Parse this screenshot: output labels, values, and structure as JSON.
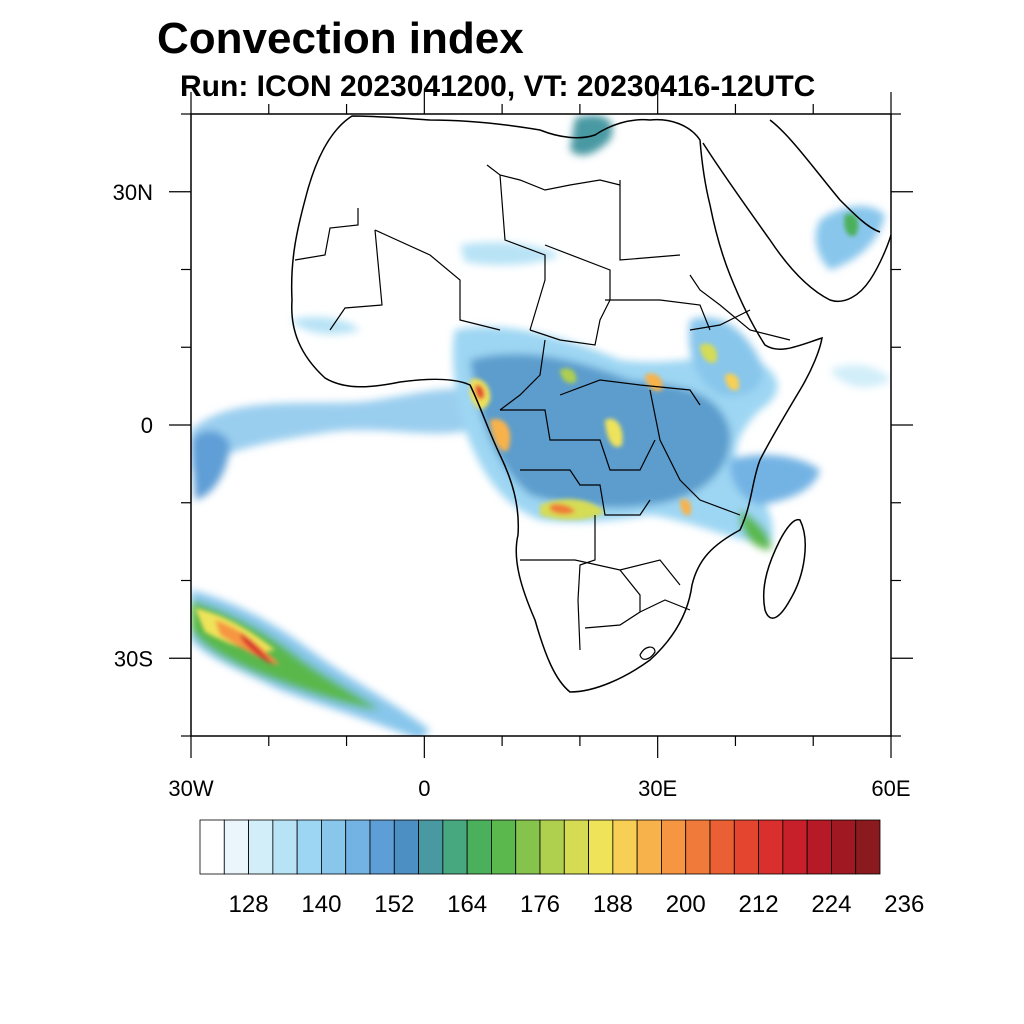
{
  "title": "Convection index",
  "subtitle": "Run: ICON 2023041200,  VT: 20230416-12UTC",
  "map": {
    "lon_range": [
      -30,
      60
    ],
    "lat_range": [
      -40,
      40
    ],
    "lon_ticks": [
      {
        "value": -30,
        "label": "30W"
      },
      {
        "value": 0,
        "label": "0"
      },
      {
        "value": 30,
        "label": "30E"
      },
      {
        "value": 60,
        "label": "60E"
      }
    ],
    "lat_ticks": [
      {
        "value": 30,
        "label": "30N"
      },
      {
        "value": 0,
        "label": "0"
      },
      {
        "value": -30,
        "label": "30S"
      }
    ]
  },
  "colorbar": {
    "colors": [
      "#ffffff",
      "#eaf6fc",
      "#d2eef9",
      "#b8e3f6",
      "#9dd6f3",
      "#88c6ec",
      "#73b3e4",
      "#5e9ed6",
      "#4b8fc3",
      "#4999a3",
      "#47a77e",
      "#4bb05b",
      "#5ab84c",
      "#86c34c",
      "#afcf4f",
      "#d5dc54",
      "#efe35a",
      "#f8cf55",
      "#f8b24c",
      "#f69642",
      "#f07a39",
      "#ea5f33",
      "#e4452f",
      "#d9302d",
      "#c8202a",
      "#b51a26",
      "#a01822",
      "#8b1a1e"
    ],
    "labels": [
      "128",
      "140",
      "152",
      "164",
      "176",
      "188",
      "200",
      "212",
      "224",
      "236"
    ]
  }
}
